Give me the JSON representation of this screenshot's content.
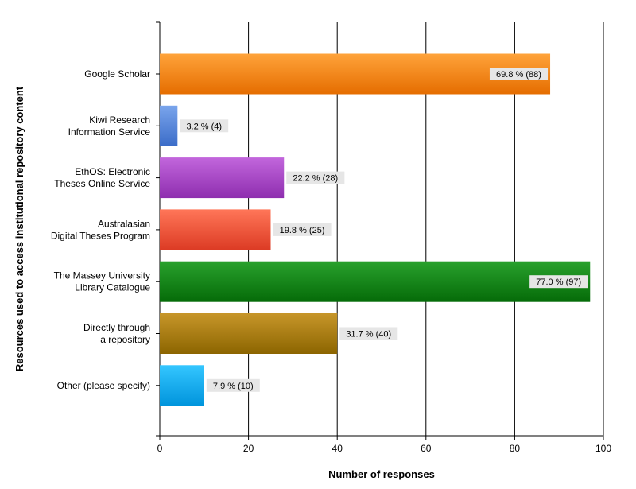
{
  "chart_data": {
    "type": "bar",
    "orientation": "horizontal",
    "title": "",
    "xlabel": "Number of responses",
    "ylabel": "Resources used to access institutional repository content",
    "xlim": [
      0,
      100
    ],
    "xticks": [
      "0",
      "20",
      "40",
      "60",
      "80",
      "100"
    ],
    "grid": true,
    "categories": [
      [
        "Google Scholar"
      ],
      [
        "Kiwi Research",
        "Information Service"
      ],
      [
        "EthOS: Electronic",
        "Theses Online Service"
      ],
      [
        "Australasian",
        "Digital Theses Program"
      ],
      [
        "The Massey University",
        "Library Catalogue"
      ],
      [
        "Directly through",
        "a repository"
      ],
      [
        "Other (please specify)"
      ]
    ],
    "values": [
      88,
      4,
      28,
      25,
      97,
      40,
      10
    ],
    "data_labels": [
      "69.8 % (88)",
      "3.2 % (4)",
      "22.2 % (28)",
      "19.8 % (25)",
      "77.0 % (97)",
      "31.7 % (40)",
      "7.9 % (10)"
    ],
    "colors": [
      [
        "#ffa33a",
        "#e56d00"
      ],
      [
        "#7aa5ec",
        "#3b6cc8"
      ],
      [
        "#c266dc",
        "#8e2eaf"
      ],
      [
        "#ff7658",
        "#dc3b24"
      ],
      [
        "#29a12d",
        "#056b08"
      ],
      [
        "#c7962a",
        "#8c6500"
      ],
      [
        "#34c6ff",
        "#0094dc"
      ]
    ],
    "label_inside": [
      true,
      false,
      false,
      false,
      true,
      false,
      false
    ]
  }
}
